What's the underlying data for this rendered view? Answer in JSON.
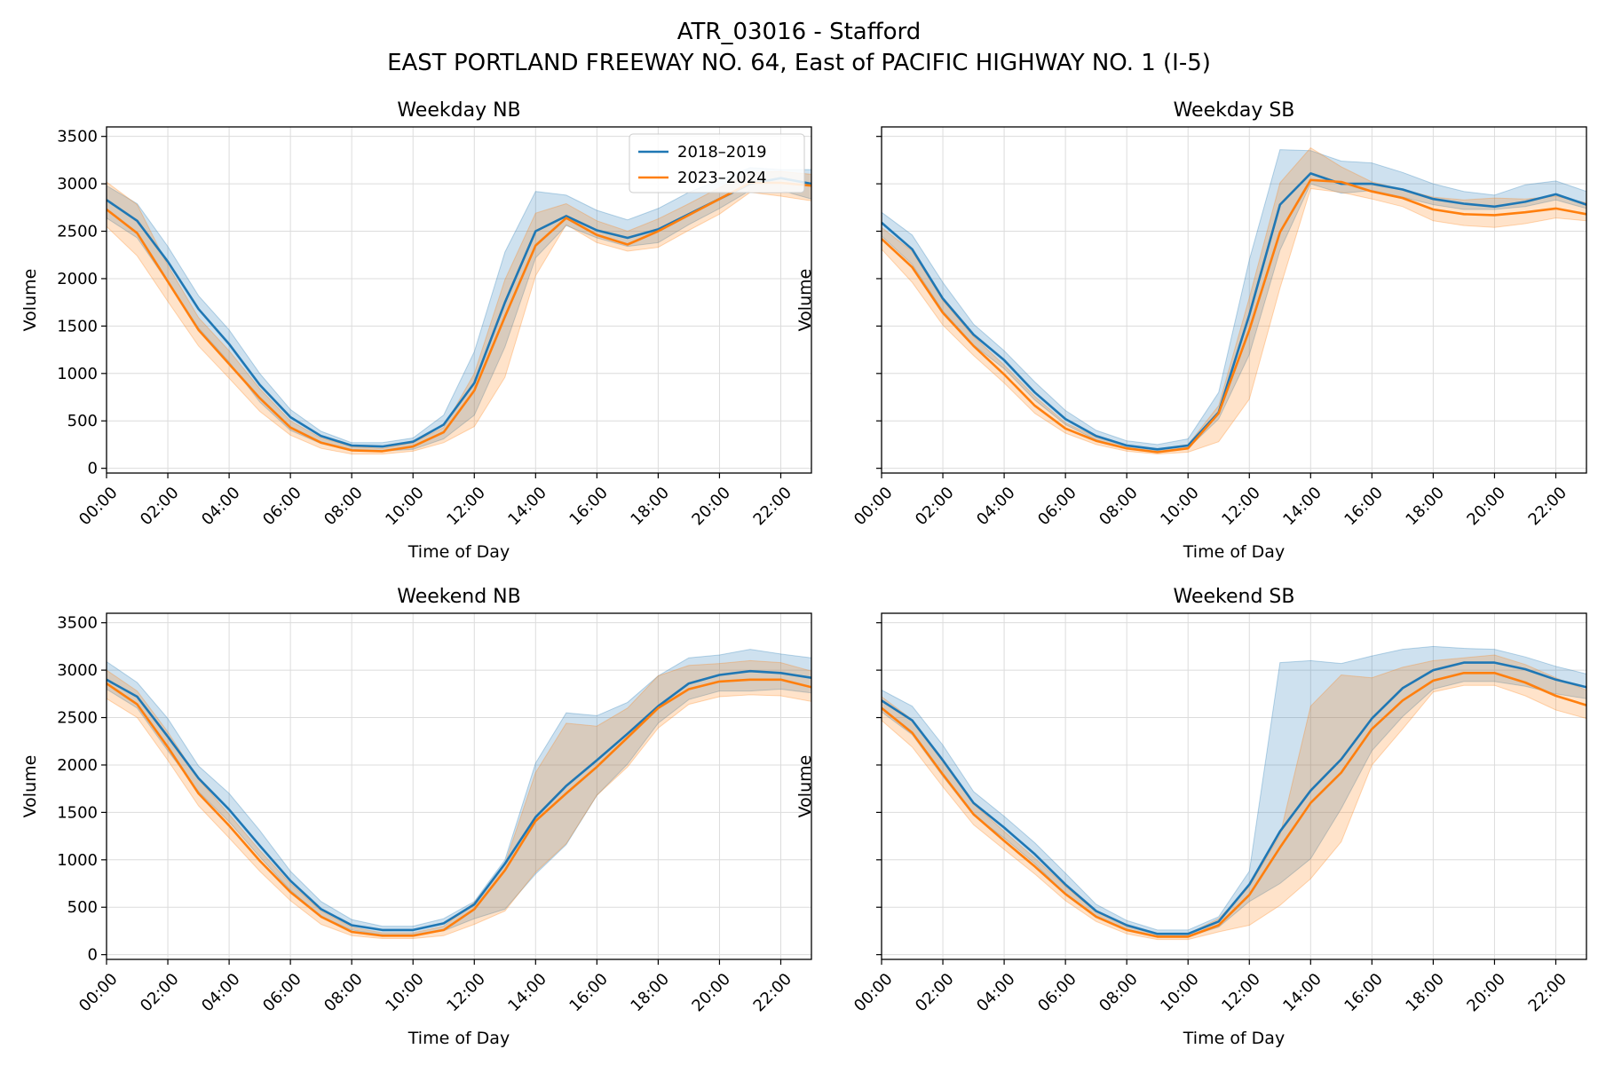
{
  "figure": {
    "title": "ATR_03016 - Stafford",
    "subtitle": "EAST PORTLAND FREEWAY NO. 64, East of PACIFIC HIGHWAY NO. 1 (I-5)",
    "colors": {
      "s1": "#1f77b4",
      "s2": "#ff7f0e",
      "grid": "#dcdcdc"
    }
  },
  "chart_data": [
    {
      "type": "line",
      "title": "Weekday NB",
      "xlabel": "Time of Day",
      "ylabel": "Volume",
      "x_ticks": [
        "00:00",
        "02:00",
        "04:00",
        "06:00",
        "08:00",
        "10:00",
        "12:00",
        "14:00",
        "16:00",
        "18:00",
        "20:00",
        "22:00"
      ],
      "y_ticks": [
        "0",
        "500",
        "1000",
        "1500",
        "2000",
        "2500",
        "3000",
        "3500"
      ],
      "xlim": [
        0,
        23
      ],
      "ylim": [
        -50,
        3600
      ],
      "grid": true,
      "legend_position": "upper right",
      "series": [
        {
          "name": "2018–2019",
          "values": [
            2830,
            2610,
            2180,
            1680,
            1310,
            880,
            540,
            340,
            240,
            230,
            280,
            460,
            900,
            1750,
            2500,
            2660,
            2510,
            2430,
            2520,
            2680,
            2840,
            3000,
            3060,
            3000
          ],
          "lower": [
            2640,
            2430,
            1960,
            1480,
            1120,
            700,
            400,
            260,
            190,
            180,
            200,
            310,
            560,
            1280,
            2220,
            2560,
            2430,
            2340,
            2380,
            2570,
            2740,
            2930,
            2930,
            2840
          ],
          "upper": [
            2980,
            2790,
            2340,
            1820,
            1460,
            1000,
            620,
            390,
            270,
            270,
            320,
            560,
            1230,
            2280,
            2920,
            2880,
            2720,
            2620,
            2740,
            2910,
            3040,
            3170,
            3150,
            3150
          ]
        },
        {
          "name": "2023–2024",
          "values": [
            2730,
            2480,
            1970,
            1460,
            1100,
            740,
            430,
            270,
            190,
            180,
            230,
            380,
            820,
            1600,
            2350,
            2640,
            2460,
            2360,
            2500,
            2670,
            2840,
            3010,
            3010,
            2980
          ],
          "lower": [
            2550,
            2240,
            1760,
            1290,
            950,
            600,
            350,
            210,
            150,
            150,
            180,
            270,
            440,
            960,
            2030,
            2570,
            2380,
            2290,
            2330,
            2510,
            2680,
            2910,
            2870,
            2820
          ],
          "upper": [
            3020,
            2780,
            2140,
            1590,
            1240,
            840,
            500,
            320,
            230,
            210,
            270,
            430,
            1000,
            1990,
            2690,
            2790,
            2610,
            2500,
            2630,
            2790,
            2960,
            3120,
            3130,
            3100
          ]
        }
      ]
    },
    {
      "type": "line",
      "title": "Weekday SB",
      "xlabel": "Time of Day",
      "ylabel": "Volume",
      "x_ticks": [
        "00:00",
        "02:00",
        "04:00",
        "06:00",
        "08:00",
        "10:00",
        "12:00",
        "14:00",
        "16:00",
        "18:00",
        "20:00",
        "22:00"
      ],
      "y_ticks": [
        "0",
        "500",
        "1000",
        "1500",
        "2000",
        "2500",
        "3000",
        "3500"
      ],
      "xlim": [
        0,
        23
      ],
      "ylim": [
        -50,
        3600
      ],
      "grid": true,
      "series": [
        {
          "name": "2018–2019",
          "values": [
            2590,
            2310,
            1790,
            1410,
            1140,
            800,
            520,
            340,
            240,
            200,
            240,
            590,
            1620,
            2780,
            3110,
            3000,
            3000,
            2940,
            2840,
            2790,
            2760,
            2810,
            2890,
            2780
          ],
          "lower": [
            2450,
            2150,
            1660,
            1300,
            1050,
            720,
            460,
            300,
            210,
            180,
            210,
            520,
            1200,
            2300,
            3000,
            2900,
            2930,
            2860,
            2780,
            2730,
            2730,
            2760,
            2830,
            2740
          ],
          "upper": [
            2700,
            2460,
            1960,
            1520,
            1240,
            910,
            610,
            400,
            290,
            250,
            310,
            800,
            2200,
            3360,
            3350,
            3240,
            3220,
            3120,
            3000,
            2920,
            2880,
            2990,
            3030,
            2920
          ]
        },
        {
          "name": "2023–2024",
          "values": [
            2420,
            2120,
            1640,
            1290,
            990,
            660,
            420,
            290,
            210,
            170,
            210,
            580,
            1460,
            2490,
            3040,
            3020,
            2920,
            2850,
            2730,
            2680,
            2670,
            2700,
            2740,
            2680
          ],
          "lower": [
            2310,
            1960,
            1510,
            1190,
            900,
            580,
            370,
            250,
            180,
            150,
            170,
            280,
            730,
            1900,
            2950,
            2910,
            2840,
            2760,
            2610,
            2560,
            2540,
            2580,
            2640,
            2610
          ],
          "upper": [
            2540,
            2290,
            1770,
            1390,
            1090,
            760,
            480,
            330,
            240,
            200,
            250,
            660,
            1800,
            3010,
            3380,
            3180,
            3020,
            2940,
            2860,
            2830,
            2850,
            2840,
            2870,
            2800
          ]
        }
      ]
    },
    {
      "type": "line",
      "title": "Weekend NB",
      "xlabel": "Time of Day",
      "ylabel": "Volume",
      "x_ticks": [
        "00:00",
        "02:00",
        "04:00",
        "06:00",
        "08:00",
        "10:00",
        "12:00",
        "14:00",
        "16:00",
        "18:00",
        "20:00",
        "22:00"
      ],
      "y_ticks": [
        "0",
        "500",
        "1000",
        "1500",
        "2000",
        "2500",
        "3000",
        "3500"
      ],
      "xlim": [
        0,
        23
      ],
      "ylim": [
        -50,
        3600
      ],
      "grid": true,
      "series": [
        {
          "name": "2018–2019",
          "values": [
            2900,
            2720,
            2300,
            1860,
            1530,
            1150,
            780,
            480,
            310,
            260,
            260,
            330,
            530,
            960,
            1450,
            1780,
            2050,
            2330,
            2620,
            2860,
            2950,
            2990,
            2970,
            2920
          ],
          "lower": [
            2800,
            2600,
            2150,
            1720,
            1400,
            1030,
            680,
            400,
            260,
            210,
            210,
            250,
            380,
            480,
            850,
            1160,
            1680,
            2010,
            2440,
            2690,
            2780,
            2780,
            2800,
            2760
          ],
          "upper": [
            3090,
            2870,
            2490,
            1990,
            1700,
            1310,
            880,
            560,
            370,
            300,
            300,
            380,
            560,
            1000,
            2020,
            2550,
            2520,
            2660,
            2940,
            3130,
            3160,
            3220,
            3170,
            3130
          ]
        },
        {
          "name": "2023–2024",
          "values": [
            2860,
            2640,
            2190,
            1700,
            1360,
            990,
            660,
            400,
            240,
            200,
            200,
            260,
            480,
            890,
            1410,
            1700,
            1980,
            2290,
            2600,
            2800,
            2880,
            2900,
            2900,
            2820
          ],
          "lower": [
            2700,
            2500,
            2050,
            1570,
            1230,
            880,
            570,
            320,
            200,
            170,
            170,
            200,
            320,
            460,
            870,
            1170,
            1680,
            1980,
            2390,
            2640,
            2720,
            2740,
            2730,
            2670
          ],
          "upper": [
            3000,
            2780,
            2350,
            1850,
            1480,
            1100,
            750,
            460,
            290,
            230,
            230,
            300,
            550,
            960,
            1920,
            2440,
            2410,
            2600,
            2940,
            3050,
            3070,
            3100,
            3080,
            2990
          ]
        }
      ]
    },
    {
      "type": "line",
      "title": "Weekend SB",
      "xlabel": "Time of Day",
      "ylabel": "Volume",
      "x_ticks": [
        "00:00",
        "02:00",
        "04:00",
        "06:00",
        "08:00",
        "10:00",
        "12:00",
        "14:00",
        "16:00",
        "18:00",
        "20:00",
        "22:00"
      ],
      "y_ticks": [
        "0",
        "500",
        "1000",
        "1500",
        "2000",
        "2500",
        "3000",
        "3500"
      ],
      "xlim": [
        0,
        23
      ],
      "ylim": [
        -50,
        3600
      ],
      "grid": true,
      "series": [
        {
          "name": "2018–2019",
          "values": [
            2680,
            2470,
            2050,
            1600,
            1340,
            1060,
            740,
            460,
            310,
            220,
            220,
            350,
            740,
            1300,
            1730,
            2060,
            2490,
            2810,
            3000,
            3080,
            3080,
            3010,
            2900,
            2820
          ],
          "lower": [
            2560,
            2320,
            1880,
            1470,
            1230,
            960,
            640,
            400,
            270,
            190,
            190,
            290,
            560,
            750,
            1010,
            1540,
            2150,
            2510,
            2800,
            2880,
            2880,
            2830,
            2750,
            2700
          ],
          "upper": [
            2790,
            2620,
            2210,
            1720,
            1460,
            1180,
            860,
            530,
            360,
            260,
            260,
            400,
            880,
            3080,
            3100,
            3070,
            3150,
            3220,
            3250,
            3230,
            3220,
            3140,
            3040,
            2960
          ]
        },
        {
          "name": "2023–2024",
          "values": [
            2600,
            2340,
            1900,
            1480,
            1200,
            930,
            640,
            400,
            260,
            190,
            190,
            310,
            630,
            1130,
            1600,
            1920,
            2380,
            2680,
            2890,
            2970,
            2970,
            2870,
            2730,
            2630
          ],
          "lower": [
            2470,
            2190,
            1770,
            1370,
            1110,
            850,
            570,
            350,
            220,
            160,
            160,
            240,
            310,
            520,
            800,
            1190,
            2000,
            2380,
            2770,
            2840,
            2840,
            2730,
            2580,
            2490
          ],
          "upper": [
            2720,
            2480,
            2040,
            1590,
            1300,
            1020,
            720,
            450,
            300,
            220,
            220,
            380,
            720,
            1260,
            2620,
            2950,
            2920,
            3030,
            3100,
            3130,
            3160,
            3060,
            2920,
            2790
          ]
        }
      ]
    }
  ]
}
